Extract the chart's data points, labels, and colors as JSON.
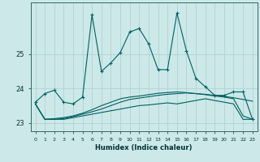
{
  "xlabel": "Humidex (Indice chaleur)",
  "bg_color": "#cce8e8",
  "grid_color": "#aacfcf",
  "line_color": "#006060",
  "xlim": [
    -0.5,
    23.5
  ],
  "ylim": [
    22.75,
    26.5
  ],
  "yticks": [
    23,
    24,
    25
  ],
  "ytick_labels": [
    "23",
    "24",
    "25"
  ],
  "xtick_labels": [
    "0",
    "1",
    "2",
    "3",
    "4",
    "5",
    "6",
    "7",
    "8",
    "9",
    "10",
    "11",
    "12",
    "13",
    "14",
    "15",
    "16",
    "17",
    "18",
    "19",
    "20",
    "21",
    "22",
    "23"
  ],
  "series1_x": [
    0,
    1,
    2,
    3,
    4,
    5,
    6,
    7,
    8,
    9,
    10,
    11,
    12,
    13,
    14,
    15,
    16,
    17,
    18,
    19,
    20,
    21,
    22,
    23
  ],
  "series1_y": [
    23.6,
    23.85,
    23.95,
    23.6,
    23.55,
    23.75,
    26.15,
    24.5,
    24.75,
    25.05,
    25.65,
    25.75,
    25.3,
    24.55,
    24.55,
    26.2,
    25.1,
    24.3,
    24.05,
    23.8,
    23.8,
    23.9,
    23.9,
    23.1
  ],
  "series2_x": [
    0,
    1,
    2,
    3,
    4,
    5,
    6,
    7,
    8,
    9,
    10,
    11,
    12,
    13,
    14,
    15,
    16,
    17,
    18,
    19,
    20,
    21,
    22,
    23
  ],
  "series2_y": [
    23.55,
    23.1,
    23.1,
    23.1,
    23.15,
    23.2,
    23.25,
    23.3,
    23.35,
    23.4,
    23.45,
    23.5,
    23.52,
    23.55,
    23.58,
    23.55,
    23.6,
    23.65,
    23.7,
    23.65,
    23.6,
    23.55,
    23.1,
    23.1
  ],
  "series3_x": [
    0,
    1,
    2,
    3,
    4,
    5,
    6,
    7,
    8,
    9,
    10,
    11,
    12,
    13,
    14,
    15,
    16,
    17,
    18,
    19,
    20,
    21,
    22,
    23
  ],
  "series3_y": [
    23.55,
    23.1,
    23.1,
    23.12,
    23.18,
    23.25,
    23.32,
    23.4,
    23.5,
    23.6,
    23.68,
    23.72,
    23.76,
    23.8,
    23.83,
    23.85,
    23.87,
    23.85,
    23.83,
    23.8,
    23.77,
    23.73,
    23.68,
    23.63
  ],
  "series4_x": [
    0,
    1,
    2,
    3,
    4,
    5,
    6,
    7,
    8,
    9,
    10,
    11,
    12,
    13,
    14,
    15,
    16,
    17,
    18,
    19,
    20,
    21,
    22,
    23
  ],
  "series4_y": [
    23.55,
    23.1,
    23.12,
    23.15,
    23.2,
    23.28,
    23.38,
    23.5,
    23.6,
    23.7,
    23.75,
    23.78,
    23.82,
    23.86,
    23.88,
    23.9,
    23.88,
    23.85,
    23.82,
    23.78,
    23.75,
    23.7,
    23.2,
    23.1
  ]
}
